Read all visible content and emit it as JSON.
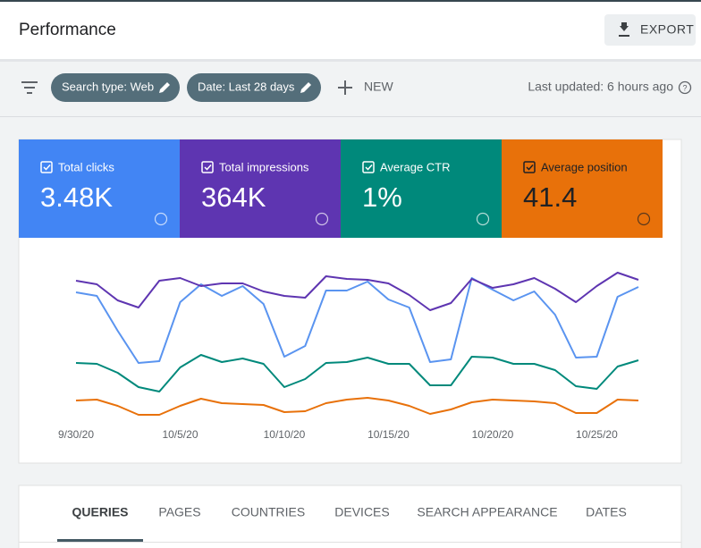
{
  "header": {
    "title": "Performance",
    "export": "EXPORT"
  },
  "filters": {
    "chips": [
      "Search type: Web",
      "Date: Last 28 days"
    ],
    "new": "NEW",
    "last_updated": "Last updated: 6 hours ago"
  },
  "cards": [
    {
      "label": "Total clicks",
      "value": "3.48K",
      "color": "#4285f4",
      "text_color": "#ffffff"
    },
    {
      "label": "Total impressions",
      "value": "364K",
      "color": "#5e35b1",
      "text_color": "#ffffff"
    },
    {
      "label": "Average CTR",
      "value": "1%",
      "color": "#00897b",
      "text_color": "#ffffff"
    },
    {
      "label": "Average position",
      "value": "41.4",
      "color": "#e8710a",
      "text_color": "#202124"
    }
  ],
  "chart_data": {
    "type": "line",
    "categories": [
      "9/30/20",
      null,
      null,
      null,
      null,
      "10/5/20",
      null,
      null,
      null,
      null,
      "10/10/20",
      null,
      null,
      null,
      null,
      "10/15/20",
      null,
      null,
      null,
      null,
      "10/20/20",
      null,
      null,
      null,
      null,
      "10/25/20",
      null,
      null
    ],
    "series": [
      {
        "color": "#e8710a",
        "values": [
          32,
          33,
          26,
          16,
          16,
          26,
          34,
          29,
          28,
          27,
          19,
          20,
          29,
          33,
          35,
          32,
          26,
          17,
          22,
          30,
          33,
          32,
          31,
          29,
          18,
          18,
          33,
          32
        ]
      },
      {
        "color": "#00897b",
        "values": [
          74,
          73,
          63,
          47,
          42,
          69,
          83,
          75,
          79,
          73,
          47,
          56,
          74,
          75,
          80,
          73,
          73,
          49,
          49,
          81,
          80,
          73,
          73,
          66,
          48,
          45,
          70,
          77
        ]
      },
      {
        "color": "#5a94f0",
        "values": [
          153,
          149,
          110,
          74,
          76,
          142,
          162,
          149,
          160,
          140,
          81,
          93,
          155,
          155,
          165,
          145,
          136,
          75,
          78,
          169,
          156,
          144,
          154,
          128,
          80,
          81,
          148,
          159
        ]
      },
      {
        "color": "#5e35b1",
        "values": [
          166,
          162,
          144,
          136,
          166,
          169,
          160,
          163,
          163,
          154,
          149,
          147,
          171,
          168,
          167,
          163,
          150,
          133,
          141,
          168,
          158,
          162,
          169,
          157,
          142,
          160,
          175,
          167
        ]
      }
    ],
    "ylim": [
      0,
      200
    ]
  },
  "tabs": [
    "QUERIES",
    "PAGES",
    "COUNTRIES",
    "DEVICES",
    "SEARCH APPEARANCE",
    "DATES"
  ]
}
